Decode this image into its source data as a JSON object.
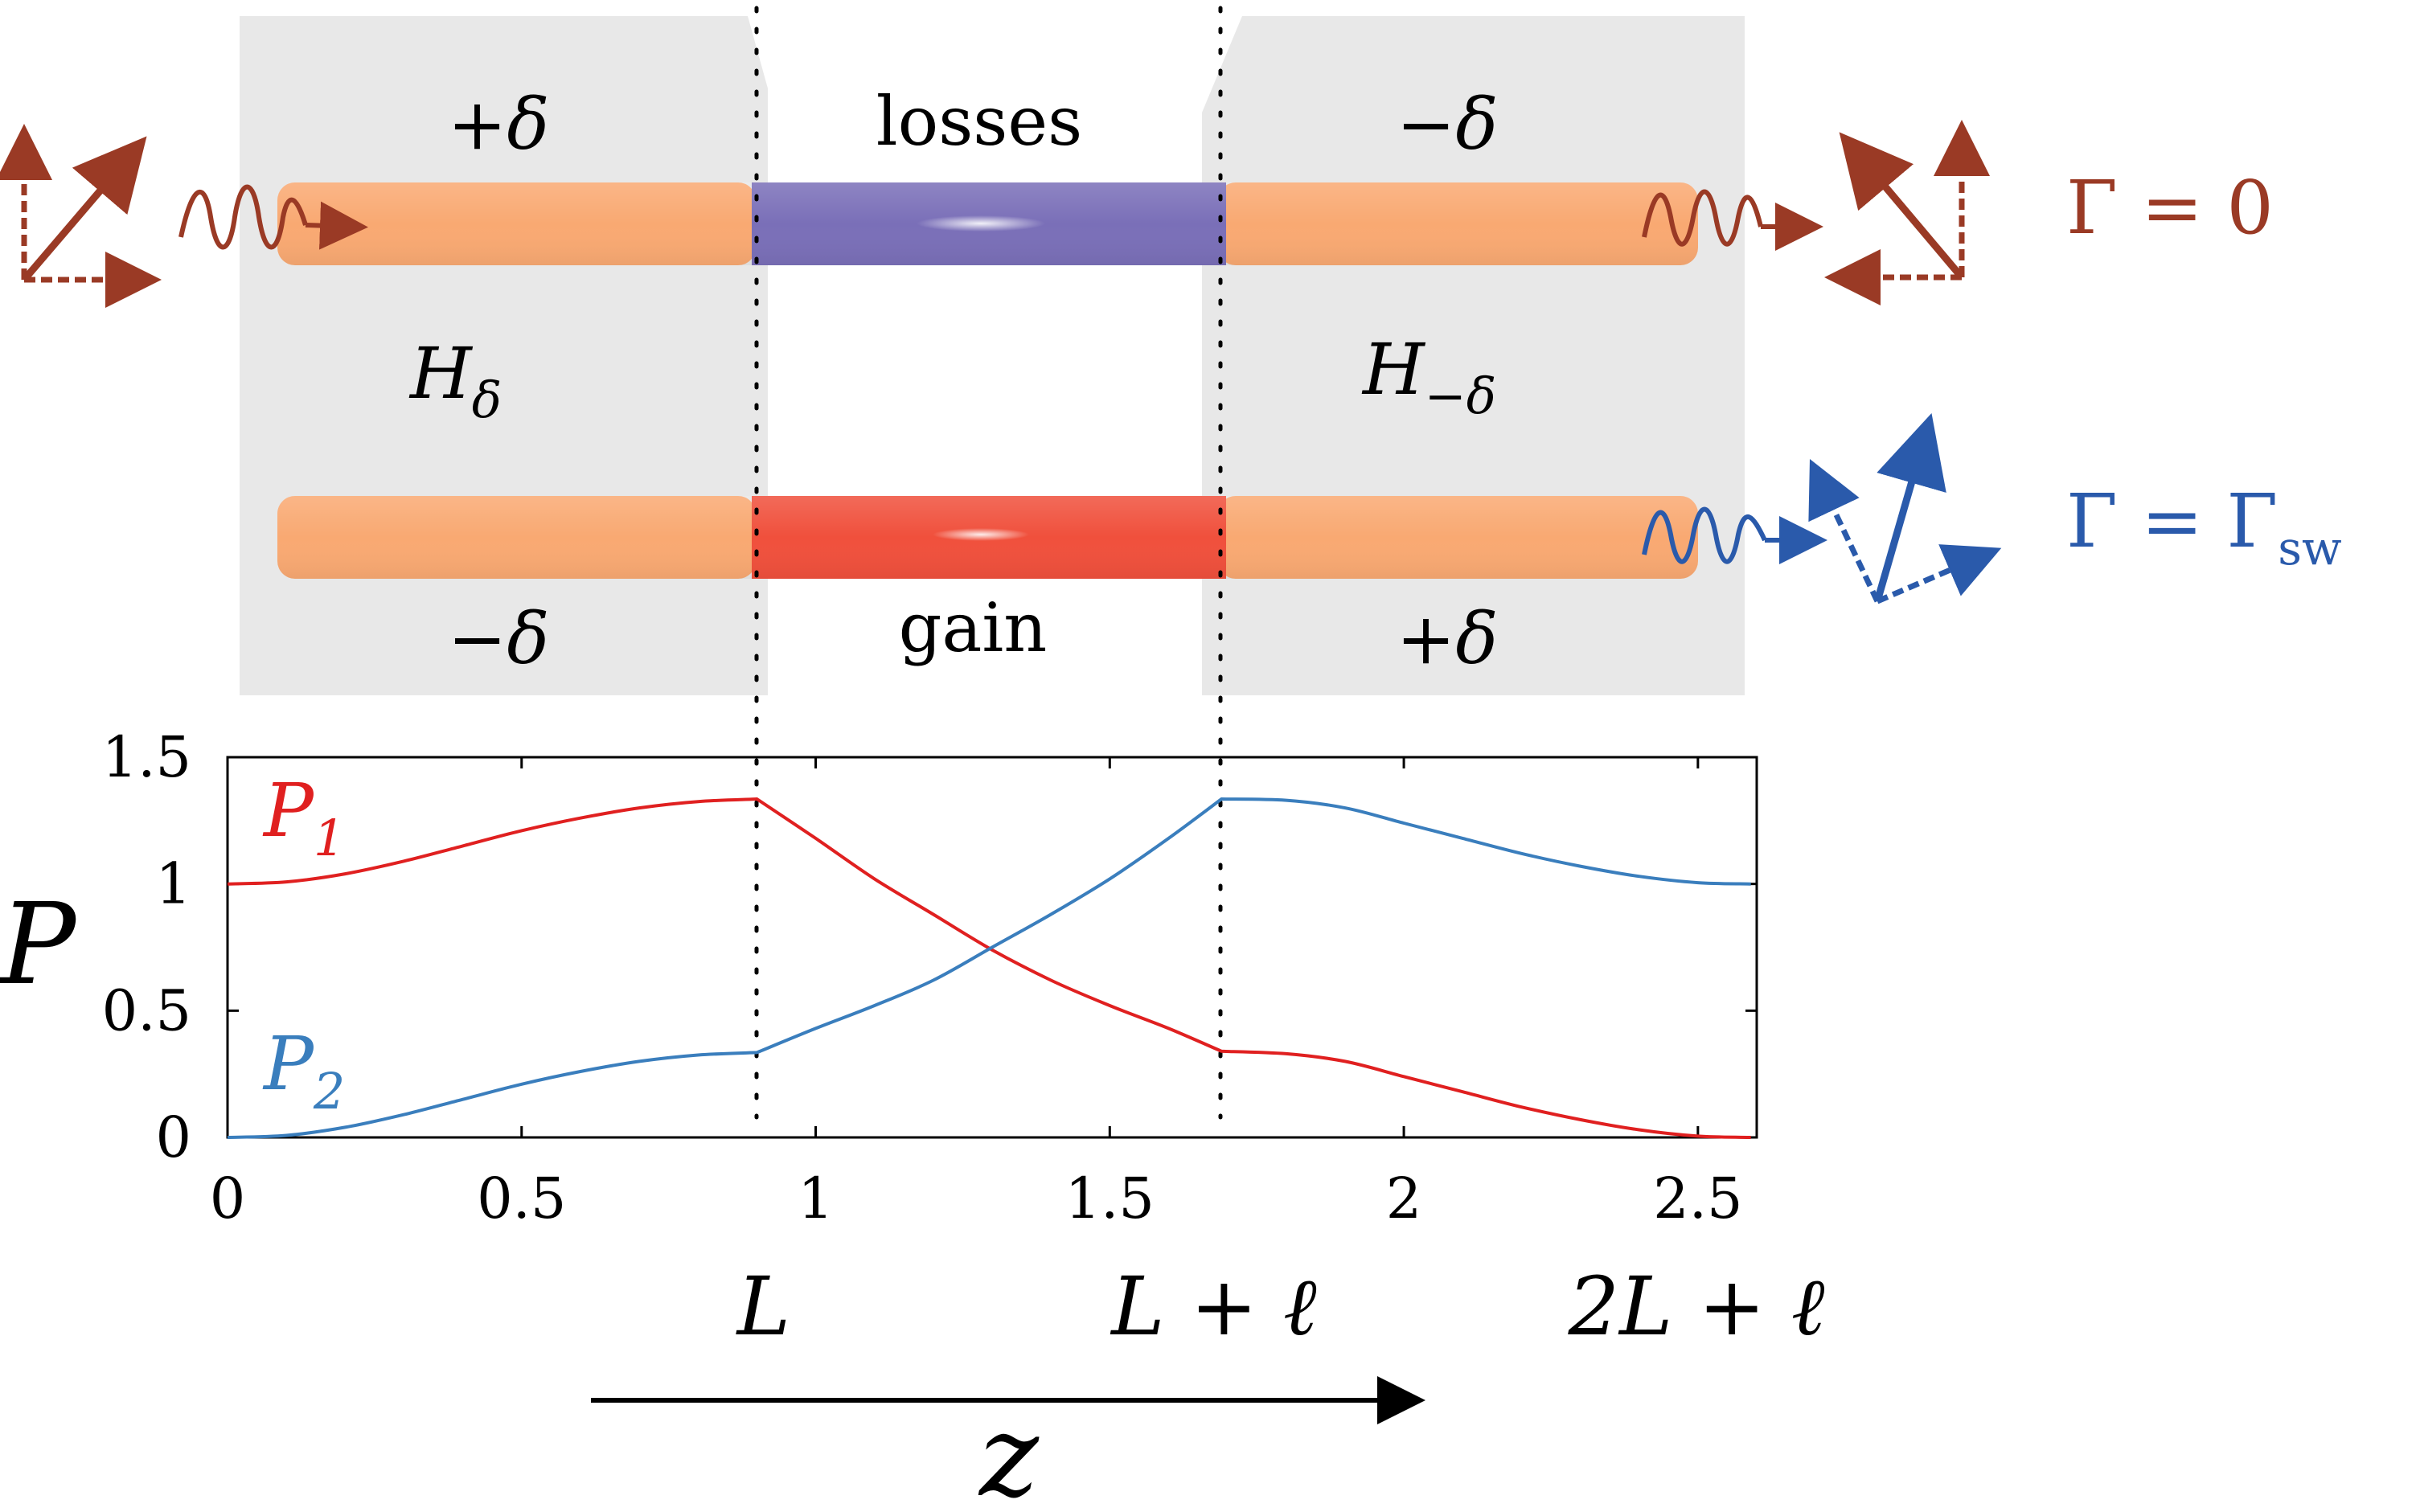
{
  "diagram": {
    "regions": {
      "left_top_sign": "+δ",
      "left_bottom_sign": "−δ",
      "middle_top_label": "losses",
      "middle_bottom_label": "gain",
      "right_top_sign": "−δ",
      "right_bottom_sign": "+δ",
      "left_hamiltonian": "H",
      "left_hamiltonian_sub": "δ",
      "right_hamiltonian": "H",
      "right_hamiltonian_sub": "−δ"
    },
    "outputs": {
      "top_label": "Γ = 0",
      "bottom_label": "Γ = Γ",
      "bottom_label_sub": "sw"
    },
    "colors": {
      "region_gray": "#e8e8e8",
      "waveguide_orange": "#f9a972",
      "loss_purple": "#7a6fb8",
      "gain_red": "#f0503c",
      "top_arrow": "#9a3a25",
      "bottom_arrow": "#2a5aab",
      "p1_line": "#e02020",
      "p2_line": "#3a7ebd"
    }
  },
  "chart_data": {
    "type": "line",
    "title": "",
    "ylabel": "P",
    "xlabel": "z",
    "xlim": [
      0,
      2.6
    ],
    "ylim": [
      0,
      1.5
    ],
    "xticks": [
      "0",
      "0.5",
      "1",
      "1.5",
      "2",
      "2.5"
    ],
    "yticks": [
      "0",
      "0.5",
      "1",
      "1.5"
    ],
    "vlines": [
      0.9,
      1.69
    ],
    "markers": [
      "L",
      "L + ℓ",
      "2L + ℓ"
    ],
    "series": [
      {
        "name": "P1",
        "sub": "1",
        "x": [
          0,
          0.1,
          0.2,
          0.3,
          0.4,
          0.5,
          0.6,
          0.7,
          0.8,
          0.9,
          1.0,
          1.1,
          1.2,
          1.3,
          1.4,
          1.5,
          1.6,
          1.69,
          1.8,
          1.9,
          2.0,
          2.1,
          2.2,
          2.3,
          2.4,
          2.5,
          2.59
        ],
        "values": [
          1.0,
          1.008,
          1.04,
          1.09,
          1.15,
          1.21,
          1.26,
          1.3,
          1.325,
          1.335,
          1.18,
          1.02,
          0.88,
          0.74,
          0.62,
          0.52,
          0.43,
          0.34,
          0.33,
          0.3,
          0.24,
          0.18,
          0.12,
          0.07,
          0.03,
          0.005,
          0.0
        ]
      },
      {
        "name": "P2",
        "sub": "2",
        "x": [
          0,
          0.1,
          0.2,
          0.3,
          0.4,
          0.5,
          0.6,
          0.7,
          0.8,
          0.9,
          1.0,
          1.1,
          1.2,
          1.3,
          1.4,
          1.5,
          1.6,
          1.69,
          1.8,
          1.9,
          2.0,
          2.1,
          2.2,
          2.3,
          2.4,
          2.5,
          2.59
        ],
        "values": [
          0.0,
          0.008,
          0.04,
          0.09,
          0.15,
          0.21,
          0.26,
          0.3,
          0.325,
          0.335,
          0.43,
          0.52,
          0.62,
          0.75,
          0.88,
          1.02,
          1.18,
          1.335,
          1.33,
          1.3,
          1.24,
          1.18,
          1.12,
          1.07,
          1.03,
          1.005,
          1.0
        ]
      }
    ]
  }
}
